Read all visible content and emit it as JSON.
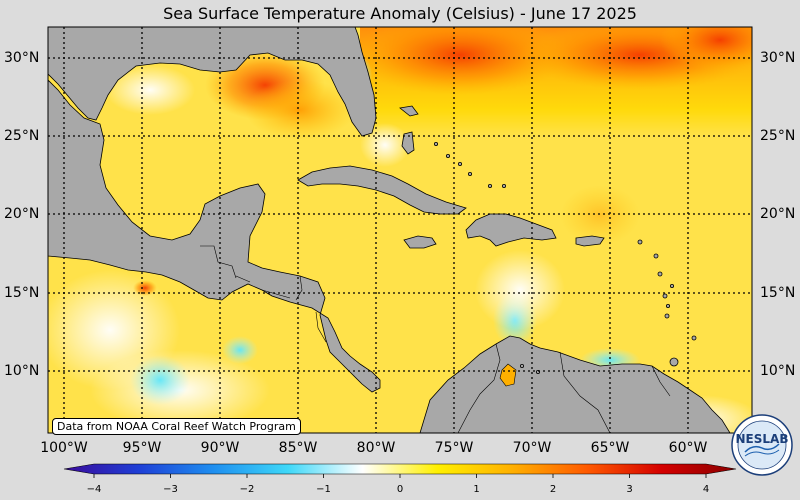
{
  "title": "Sea Surface Temperature Anomaly (Celsius) - June 17 2025",
  "credit": "Data from NOAA Coral Reef Watch Program",
  "logo_text": "NESLAB",
  "latitudes": [
    "30°N",
    "25°N",
    "20°N",
    "15°N",
    "10°N"
  ],
  "longitudes": [
    "100°W",
    "95°W",
    "90°W",
    "85°W",
    "80°W",
    "75°W",
    "70°W",
    "65°W",
    "60°W"
  ],
  "colorbar": {
    "min": -4,
    "max": 4,
    "ticks": [
      "-4",
      "-3",
      "-2",
      "-1",
      "0",
      "1",
      "2",
      "3",
      "4"
    ],
    "colors": [
      "#3a0a9a",
      "#1f3fd6",
      "#1f8ff0",
      "#3fd8f8",
      "#ffffff",
      "#fff000",
      "#ffb000",
      "#ff5a00",
      "#d40000",
      "#8a0000"
    ]
  },
  "colors": {
    "land": "#a8a8a8",
    "background": "#dcdcdc",
    "ocean_base": "#ffe24a"
  }
}
